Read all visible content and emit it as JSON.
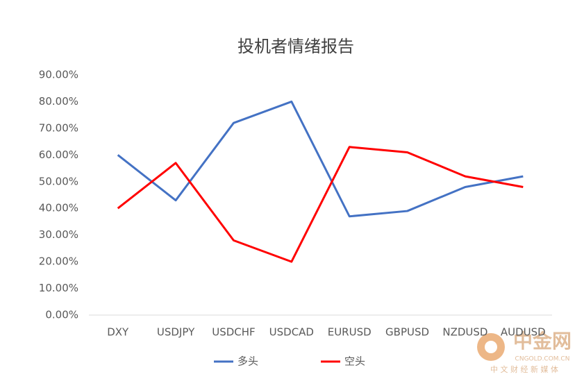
{
  "chart_data": {
    "type": "line",
    "title": "投机者情绪报告",
    "categories": [
      "DXY",
      "USDJPY",
      "USDCHF",
      "USDCAD",
      "EURUSD",
      "GBPUSD",
      "NZDUSD",
      "AUDUSD"
    ],
    "series": [
      {
        "name": "多头",
        "color": "#4472c4",
        "values": [
          60,
          43,
          72,
          80,
          37,
          39,
          48,
          52
        ]
      },
      {
        "name": "空头",
        "color": "#ff0000",
        "values": [
          40,
          57,
          28,
          20,
          63,
          61,
          52,
          48
        ]
      }
    ],
    "ylim": [
      0,
      90
    ],
    "yticks": [
      {
        "value": 0,
        "label": "0.00%"
      },
      {
        "value": 10,
        "label": "10.00%"
      },
      {
        "value": 20,
        "label": "20.00%"
      },
      {
        "value": 30,
        "label": "30.00%"
      },
      {
        "value": 40,
        "label": "40.00%"
      },
      {
        "value": 50,
        "label": "50.00%"
      },
      {
        "value": 60,
        "label": "60.00%"
      },
      {
        "value": 70,
        "label": "70.00%"
      },
      {
        "value": 80,
        "label": "80.00%"
      },
      {
        "value": 90,
        "label": "90.00%"
      }
    ],
    "grid": false,
    "legend": "bottom"
  },
  "watermark": {
    "brand": "中金网",
    "site": "CNGOLD.COM.CN",
    "slogan": "中 文 财 经 新 媒 体"
  }
}
